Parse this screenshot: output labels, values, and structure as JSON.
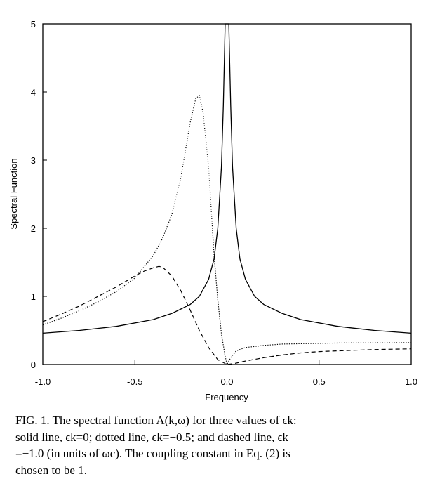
{
  "chart_data": {
    "type": "line",
    "xlabel": "Frequency",
    "ylabel": "Spectral Function",
    "xlim": [
      -1.0,
      1.0
    ],
    "ylim": [
      0,
      5
    ],
    "x_ticks": [
      "-1.0",
      "-0.5",
      "0.0",
      "0.5",
      "1.0"
    ],
    "y_ticks": [
      "0",
      "1",
      "2",
      "3",
      "4",
      "5"
    ],
    "grid": false,
    "legend": "none",
    "series": [
      {
        "style": "solid",
        "x": [
          -1.0,
          -0.8,
          -0.6,
          -0.4,
          -0.3,
          -0.2,
          -0.15,
          -0.1,
          -0.07,
          -0.05,
          -0.03,
          -0.02,
          -0.01,
          0.0,
          0.01,
          0.02,
          0.03,
          0.05,
          0.07,
          0.1,
          0.15,
          0.2,
          0.3,
          0.4,
          0.6,
          0.8,
          1.0
        ],
        "y": [
          0.46,
          0.5,
          0.56,
          0.66,
          0.75,
          0.88,
          1.0,
          1.25,
          1.55,
          2.0,
          2.9,
          3.8,
          5.0,
          5.0,
          5.0,
          3.8,
          2.9,
          2.0,
          1.55,
          1.25,
          1.0,
          0.88,
          0.75,
          0.66,
          0.56,
          0.5,
          0.46
        ]
      },
      {
        "style": "dotted",
        "x": [
          -1.0,
          -0.9,
          -0.8,
          -0.7,
          -0.6,
          -0.5,
          -0.4,
          -0.35,
          -0.3,
          -0.25,
          -0.2,
          -0.17,
          -0.15,
          -0.13,
          -0.1,
          -0.07,
          -0.05,
          -0.03,
          -0.01,
          0.0,
          0.02,
          0.05,
          0.1,
          0.2,
          0.3,
          0.5,
          0.7,
          1.0
        ],
        "y": [
          0.58,
          0.68,
          0.79,
          0.92,
          1.07,
          1.27,
          1.6,
          1.85,
          2.2,
          2.75,
          3.55,
          3.9,
          3.95,
          3.7,
          2.9,
          1.6,
          0.95,
          0.45,
          0.12,
          0.0,
          0.1,
          0.2,
          0.25,
          0.28,
          0.3,
          0.31,
          0.32,
          0.32
        ]
      },
      {
        "style": "dashed",
        "x": [
          -1.0,
          -0.9,
          -0.8,
          -0.7,
          -0.6,
          -0.5,
          -0.45,
          -0.4,
          -0.37,
          -0.35,
          -0.3,
          -0.25,
          -0.2,
          -0.15,
          -0.1,
          -0.05,
          0.0,
          0.05,
          0.1,
          0.2,
          0.3,
          0.4,
          0.5,
          0.6,
          0.8,
          1.0
        ],
        "y": [
          0.63,
          0.74,
          0.86,
          1.0,
          1.14,
          1.3,
          1.37,
          1.42,
          1.44,
          1.43,
          1.3,
          1.08,
          0.8,
          0.5,
          0.25,
          0.07,
          0.0,
          0.02,
          0.05,
          0.1,
          0.14,
          0.17,
          0.19,
          0.2,
          0.22,
          0.23
        ]
      }
    ]
  },
  "caption": {
    "lines": [
      "FIG. 1.  The spectral function A(k,ω) for three values of ϵk:",
      "solid line, ϵk=0; dotted line, ϵk=−0.5; and dashed line, ϵk",
      "=−1.0 (in units of ωc).  The coupling constant in Eq. (2) is",
      "chosen to be 1."
    ]
  }
}
